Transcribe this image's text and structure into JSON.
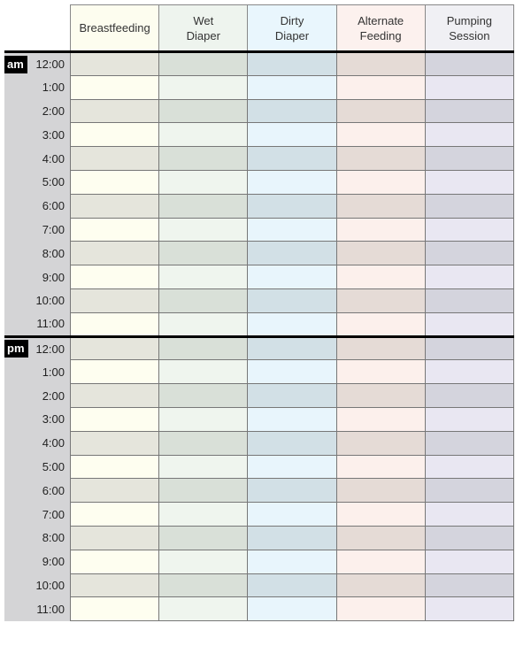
{
  "columns": [
    {
      "label": "Breastfeeding",
      "header_color": "#fdfdef",
      "light": "#fefef0",
      "dark": "#e5e5dc"
    },
    {
      "label": "Wet\nDiaper",
      "header_color": "#eef4ee",
      "light": "#eff5ee",
      "dark": "#d9e0d8"
    },
    {
      "label": "Dirty\nDiaper",
      "header_color": "#e9f6fd",
      "light": "#e8f5fc",
      "dark": "#d2e0e6"
    },
    {
      "label": "Alternate\nFeeding",
      "header_color": "#fcf1ee",
      "light": "#fcf0ec",
      "dark": "#e5dbd6"
    },
    {
      "label": "Pumping\nSession",
      "header_color": "#f0f0f4",
      "light": "#e9e7f2",
      "dark": "#d4d4dd"
    }
  ],
  "periods": [
    {
      "label": "am",
      "times": [
        "12:00",
        "1:00",
        "2:00",
        "3:00",
        "4:00",
        "5:00",
        "6:00",
        "7:00",
        "8:00",
        "9:00",
        "10:00",
        "11:00"
      ]
    },
    {
      "label": "pm",
      "times": [
        "12:00",
        "1:00",
        "2:00",
        "3:00",
        "4:00",
        "5:00",
        "6:00",
        "7:00",
        "8:00",
        "9:00",
        "10:00",
        "11:00"
      ]
    }
  ]
}
